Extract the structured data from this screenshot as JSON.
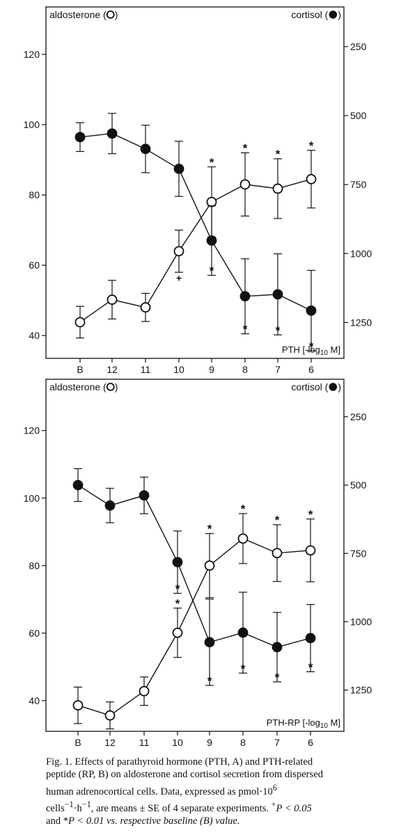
{
  "chart_data": [
    {
      "type": "line",
      "categories": [
        "B",
        "12",
        "11",
        "10",
        "9",
        "8",
        "7",
        "6"
      ],
      "x_axis_label": "PTH [-log",
      "x_axis_label_sub": "10",
      "x_axis_label_end": " M]",
      "left_axis": {
        "label": "aldosterone (",
        "label_end": ")",
        "ticks": [
          40,
          60,
          80,
          100,
          120
        ],
        "range": [
          33.5,
          133.5
        ]
      },
      "right_axis": {
        "label": "cortisol (",
        "label_end": ")",
        "ticks": [
          250,
          500,
          750,
          1000,
          1250
        ],
        "range": [
          1380,
          106.3
        ]
      },
      "series": [
        {
          "name": "aldosterone",
          "axis": "left",
          "marker": "open",
          "values": [
            43.8,
            50.2,
            48.0,
            64.0,
            78.0,
            83.0,
            81.8,
            84.5
          ],
          "errors": [
            4.5,
            5.5,
            4.0,
            6.0,
            10.0,
            9.0,
            8.5,
            8.2
          ],
          "annotations": [
            "",
            "",
            "",
            "+",
            "*",
            "*",
            "*",
            "*"
          ]
        },
        {
          "name": "cortisol",
          "axis": "right",
          "marker": "filled",
          "values": [
            578,
            565,
            621,
            693,
            953,
            1155,
            1148,
            1207
          ],
          "errors": [
            52,
            73,
            86,
            100,
            126,
            136,
            147,
            146
          ],
          "annotations": [
            "",
            "",
            "",
            "",
            "*",
            "*",
            "*",
            "*"
          ]
        }
      ]
    },
    {
      "type": "line",
      "categories": [
        "B",
        "12",
        "11",
        "10",
        "9",
        "8",
        "7",
        "6"
      ],
      "x_axis_label": "PTH-RP [-log",
      "x_axis_label_sub": "10",
      "x_axis_label_end": " M]",
      "left_axis": {
        "label": "aldosterone (",
        "label_end": ")",
        "ticks": [
          40,
          60,
          80,
          100,
          120
        ],
        "range": [
          30.9,
          135.2
        ]
      },
      "right_axis": {
        "label": "cortisol (",
        "label_end": ")",
        "ticks": [
          250,
          500,
          750,
          1000,
          1250
        ],
        "range": [
          1401,
          112.8
        ]
      },
      "series": [
        {
          "name": "aldosterone",
          "axis": "left",
          "marker": "open",
          "values": [
            38.6,
            35.6,
            42.8,
            60.1,
            80.0,
            88.0,
            83.7,
            84.5
          ],
          "errors": [
            5.4,
            4.0,
            4.2,
            7.3,
            9.5,
            7.4,
            8.4,
            9.3
          ],
          "annotations": [
            "",
            "",
            "",
            "*",
            "*",
            "*",
            "*",
            "*"
          ]
        },
        {
          "name": "cortisol",
          "axis": "right",
          "marker": "filled",
          "values": [
            500,
            575,
            538,
            782,
            1075,
            1040,
            1093,
            1060
          ],
          "errors": [
            60,
            63,
            67,
            114,
            158,
            148,
            127,
            123
          ],
          "annotations": [
            "",
            "",
            "",
            "*",
            "*",
            "*",
            "*",
            "*"
          ]
        }
      ]
    }
  ],
  "caption": {
    "line1": "Fig. 1. Effects of parathyroid hormone (PTH, A) and PTH-related",
    "line2": "peptide (RP, B) on aldosterone and cortisol secretion from dispersed",
    "line3": "human adrenocortical cells. Data, expressed as pmol·10",
    "line3_sup": "6",
    "line4": "cells",
    "line4_sup1": "−1",
    "line4_mid": "·h",
    "line4_sup2": "−1",
    "line4_end": ", are means ± SE of 4 separate experiments.",
    "line4_plus": "+",
    "line4_p": "P < 0.05",
    "line5_star": "and *",
    "line5_p": "P < 0.01 vs. respective baseline (B) value."
  }
}
